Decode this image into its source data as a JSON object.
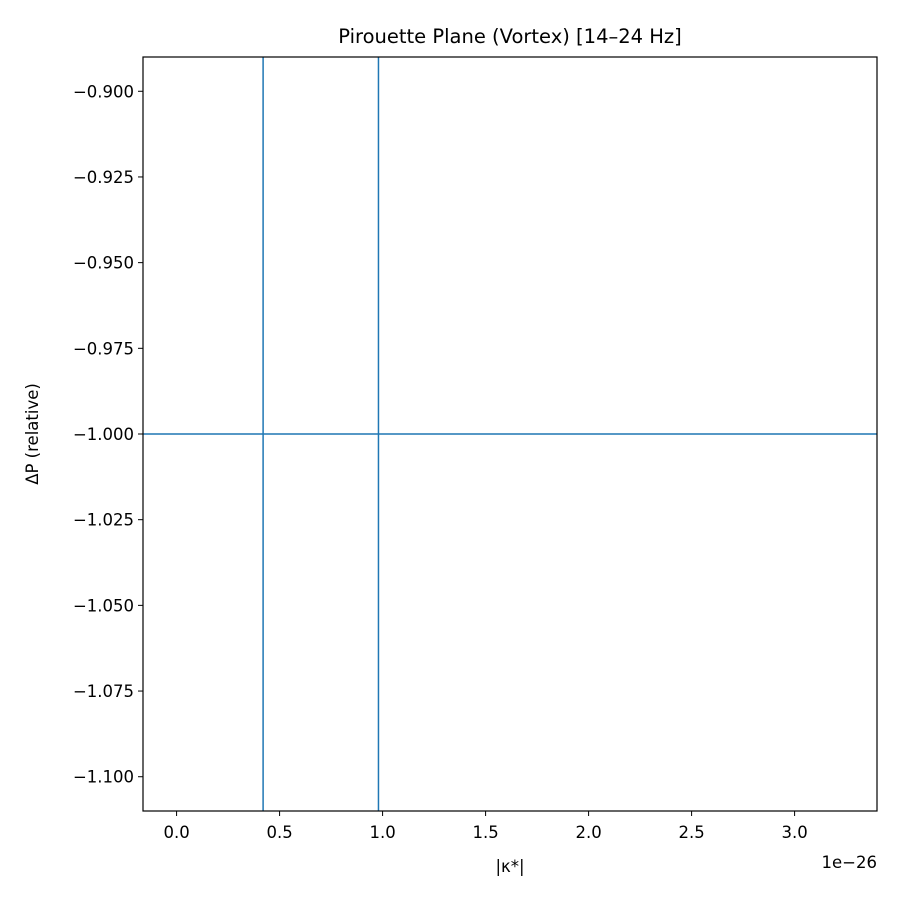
{
  "chart_data": {
    "type": "line",
    "title": "Pirouette Plane (Vortex)  [14–24 Hz]",
    "xlabel": "|κ*|",
    "ylabel": "ΔP (relative)",
    "x_offset_text": "1e−26",
    "xlim": [
      -0.163,
      3.4
    ],
    "ylim": [
      -1.11,
      -0.89
    ],
    "x_ticks": [
      0.0,
      0.5,
      1.0,
      1.5,
      2.0,
      2.5,
      3.0
    ],
    "x_tick_labels": [
      "0.0",
      "0.5",
      "1.0",
      "1.5",
      "2.0",
      "2.5",
      "3.0"
    ],
    "y_ticks": [
      -0.9,
      -0.925,
      -0.95,
      -0.975,
      -1.0,
      -1.025,
      -1.05,
      -1.075,
      -1.1
    ],
    "y_tick_labels": [
      "−0.900",
      "−0.925",
      "−0.950",
      "−0.975",
      "−1.000",
      "−1.025",
      "−1.050",
      "−1.075",
      "−1.100"
    ],
    "vertical_lines": [
      0.42,
      0.98
    ],
    "horizontal_lines": [
      -1.0
    ],
    "line_color": "#1f77b4",
    "grid": false,
    "legend": "none"
  }
}
